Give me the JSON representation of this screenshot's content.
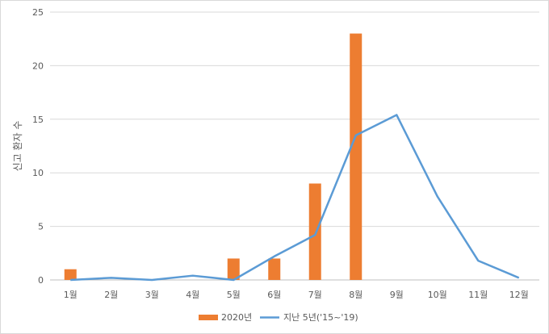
{
  "chart_data": {
    "type": "bar",
    "categories": [
      "1월",
      "2월",
      "3월",
      "4월",
      "5월",
      "6월",
      "7월",
      "8월",
      "9월",
      "10월",
      "11월",
      "12월"
    ],
    "series": [
      {
        "name": "2020년",
        "type": "bar",
        "color": "#ED7D31",
        "values": [
          1,
          null,
          null,
          null,
          2,
          2,
          9,
          23,
          null,
          null,
          null,
          null
        ]
      },
      {
        "name": "지난 5년('15~'19)",
        "type": "line",
        "color": "#5B9BD5",
        "values": [
          0.0,
          0.2,
          0.0,
          0.4,
          0.0,
          2.2,
          4.2,
          13.5,
          15.4,
          7.8,
          1.8,
          0.2
        ]
      }
    ],
    "title": "",
    "xlabel": "",
    "ylabel": "신고 환자 수",
    "ylim": [
      0,
      25
    ],
    "yticks": [
      0,
      5,
      10,
      15,
      20,
      25
    ],
    "grid": true,
    "legend": "bottom"
  }
}
